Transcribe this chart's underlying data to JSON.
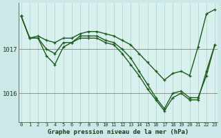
{
  "xlabel": "Graphe pression niveau de la mer (hPa)",
  "bg_color": "#cce8e8",
  "plot_bg_color": "#d8f0ee",
  "line_color": "#1a5c1a",
  "grid_color": "#b0cece",
  "hline_color": "#d06060",
  "hours": [
    0,
    1,
    2,
    3,
    4,
    5,
    6,
    7,
    8,
    9,
    10,
    11,
    12,
    13,
    14,
    15,
    16,
    17,
    18,
    19,
    20,
    21,
    22,
    23
  ],
  "series": [
    [
      1017.75,
      1017.25,
      1017.25,
      1016.85,
      1016.65,
      1017.05,
      1017.15,
      1017.25,
      1017.25,
      1017.25,
      1017.15,
      1017.1,
      1016.9,
      1016.65,
      1016.4,
      1016.1,
      1015.85,
      1015.6,
      1015.9,
      1016.0,
      1015.85,
      1015.85,
      1016.5,
      1017.1
    ],
    [
      1017.75,
      1017.25,
      1017.25,
      1017.0,
      1016.9,
      1017.15,
      1017.15,
      1017.3,
      1017.3,
      1017.3,
      1017.2,
      1017.15,
      1017.0,
      1016.8,
      1016.5,
      1016.2,
      1015.9,
      1015.65,
      1016.0,
      1016.05,
      1015.9,
      1015.9,
      1016.4,
      1017.1
    ],
    [
      1017.75,
      1017.25,
      1017.3,
      1017.2,
      1017.15,
      1017.25,
      1017.25,
      1017.35,
      1017.4,
      1017.4,
      1017.35,
      1017.3,
      1017.2,
      1017.1,
      1016.9,
      1016.7,
      1016.5,
      1016.3,
      1016.45,
      1016.5,
      1016.4,
      1017.05,
      1017.8,
      1017.9
    ]
  ],
  "yticks": [
    1016,
    1017
  ],
  "ylim": [
    1015.35,
    1018.05
  ],
  "marker": "+",
  "markersize": 3.5,
  "linewidth": 1.0,
  "fontsize_xlabel": 6.5,
  "fontsize_yticks": 6.5,
  "fontsize_xticks": 5.0
}
